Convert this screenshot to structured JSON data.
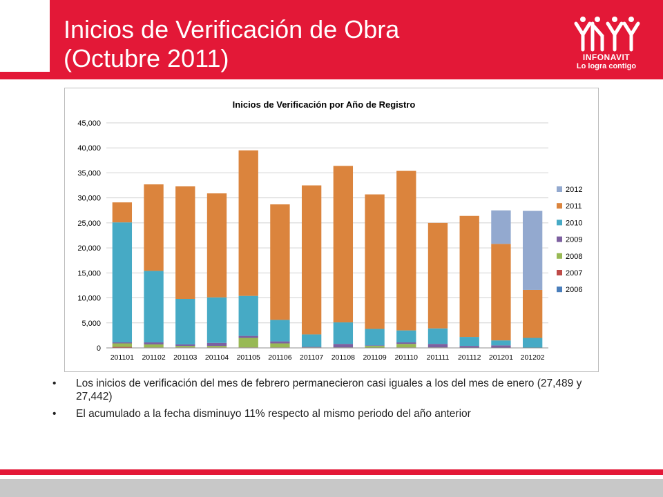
{
  "slide": {
    "title_line1": "Inicios de Verificación de Obra",
    "title_line2": "(Octubre 2011)",
    "logo_name": "INFONAVIT",
    "logo_slogan": "Lo logra contigo",
    "bullets": [
      "Los inicios de verificación del mes de febrero permanecieron casi iguales a los del mes de enero (27,489 y 27,442)",
      "El acumulado a la fecha disminuyo 11% respecto al mismo periodo del año anterior"
    ],
    "colors": {
      "header": "#e31837",
      "footer_gray": "#c8c8c8"
    }
  },
  "chart_data": {
    "type": "bar",
    "stacked": true,
    "title": "Inicios de Verificación por Año de Registro",
    "categories": [
      "201101",
      "201102",
      "201103",
      "201104",
      "201105",
      "201106",
      "201107",
      "201108",
      "201109",
      "201110",
      "201111",
      "201112",
      "201201",
      "201202"
    ],
    "ylim": [
      0,
      45000
    ],
    "yticks": [
      0,
      5000,
      10000,
      15000,
      20000,
      25000,
      30000,
      35000,
      40000,
      45000
    ],
    "ytick_labels": [
      "0",
      "5,000",
      "10,000",
      "15,000",
      "20,000",
      "25,000",
      "30,000",
      "35,000",
      "40,000",
      "45,000"
    ],
    "grid": true,
    "legend_position": "right",
    "series": [
      {
        "name": "2006",
        "color": "#4a7ebb",
        "values": [
          0,
          0,
          0,
          0,
          0,
          0,
          0,
          0,
          0,
          0,
          0,
          0,
          0,
          0
        ]
      },
      {
        "name": "2007",
        "color": "#be4b48",
        "values": [
          200,
          100,
          100,
          100,
          100,
          100,
          0,
          0,
          0,
          100,
          0,
          0,
          0,
          0
        ]
      },
      {
        "name": "2008",
        "color": "#98b954",
        "values": [
          700,
          600,
          300,
          300,
          1900,
          800,
          100,
          100,
          400,
          700,
          100,
          0,
          0,
          0
        ]
      },
      {
        "name": "2009",
        "color": "#7d60a0",
        "values": [
          200,
          400,
          300,
          600,
          400,
          400,
          100,
          700,
          100,
          300,
          700,
          400,
          500,
          0
        ]
      },
      {
        "name": "2010",
        "color": "#46aac5",
        "values": [
          24000,
          14300,
          9100,
          9100,
          8000,
          4300,
          2500,
          4300,
          3300,
          2400,
          3100,
          1800,
          1000,
          2000
        ]
      },
      {
        "name": "2011",
        "color": "#db843d",
        "values": [
          4000,
          17300,
          22500,
          20800,
          29100,
          23100,
          29800,
          31300,
          26900,
          31900,
          21100,
          24200,
          19300,
          9600
        ]
      },
      {
        "name": "2012",
        "color": "#93a9cf",
        "values": [
          0,
          0,
          0,
          0,
          0,
          0,
          0,
          0,
          0,
          0,
          0,
          0,
          6700,
          15800
        ]
      }
    ]
  }
}
